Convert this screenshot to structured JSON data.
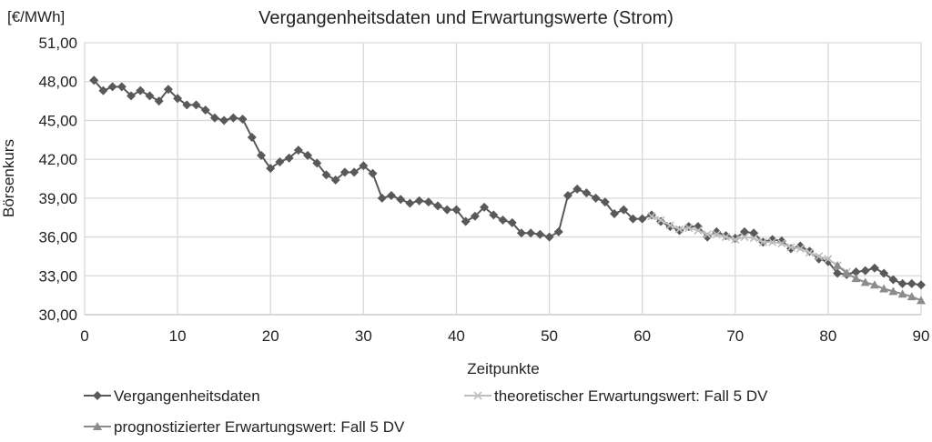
{
  "chart_data": {
    "type": "line",
    "title": "Vergangenheitsdaten und Erwartungswerte (Strom)",
    "xlabel": "Zeitpunkte",
    "ylabel": "Börsenkurs",
    "unit_label": "[€/MWh]",
    "xlim": [
      0,
      90
    ],
    "ylim": [
      30,
      51
    ],
    "xticks": [
      "0",
      "10",
      "20",
      "30",
      "40",
      "50",
      "60",
      "70",
      "80",
      "90"
    ],
    "yticks": [
      "30,00",
      "33,00",
      "36,00",
      "39,00",
      "42,00",
      "45,00",
      "48,00",
      "51,00"
    ],
    "grid": true,
    "legend_position": "bottom",
    "series": [
      {
        "name": "Vergangenheitsdaten",
        "marker": "diamond",
        "color": "#595959",
        "x_start": 1,
        "values": [
          48.1,
          47.3,
          47.6,
          47.6,
          46.9,
          47.3,
          46.9,
          46.5,
          47.4,
          46.7,
          46.2,
          46.2,
          45.8,
          45.2,
          45.0,
          45.2,
          45.1,
          43.7,
          42.3,
          41.3,
          41.8,
          42.1,
          42.7,
          42.3,
          41.7,
          40.8,
          40.4,
          41.0,
          41.0,
          41.5,
          40.9,
          39.0,
          39.2,
          38.9,
          38.6,
          38.8,
          38.7,
          38.4,
          38.1,
          38.1,
          37.2,
          37.6,
          38.3,
          37.7,
          37.3,
          37.1,
          36.3,
          36.3,
          36.2,
          36.0,
          36.4,
          39.2,
          39.7,
          39.4,
          39.0,
          38.7,
          37.8,
          38.1,
          37.4,
          37.4,
          37.7,
          37.2,
          36.8,
          36.5,
          36.8,
          36.8,
          36.0,
          36.4,
          36.1,
          35.9,
          36.4,
          36.3,
          35.6,
          35.8,
          35.7,
          35.1,
          35.3,
          34.9,
          34.3,
          34.1,
          33.2,
          33.1,
          33.3,
          33.4,
          33.6,
          33.2,
          32.7,
          32.4,
          32.4,
          32.3
        ]
      },
      {
        "name": "theoretischer Erwartungswert: Fall 5 DV",
        "marker": "x",
        "color": "#bfbfbf",
        "x_start": 61,
        "values": [
          37.6,
          37.3,
          36.9,
          36.6,
          36.7,
          36.5,
          36.2,
          36.2,
          36.0,
          35.8,
          36.0,
          35.9,
          35.6,
          35.6,
          35.5,
          35.2,
          35.1,
          34.8,
          34.5,
          34.3,
          33.8,
          33.3
        ]
      },
      {
        "name": "prognostizierter Erwartungswert: Fall 5 DV",
        "marker": "triangle",
        "color": "#8c8c8c",
        "x_start": 81,
        "values": [
          33.8,
          33.2,
          32.8,
          32.5,
          32.3,
          32.0,
          31.8,
          31.6,
          31.4,
          31.1
        ]
      }
    ]
  }
}
